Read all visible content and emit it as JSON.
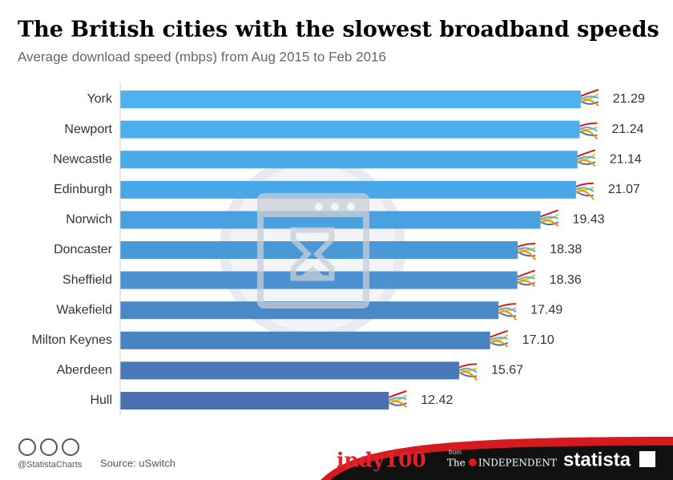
{
  "chart_data": {
    "type": "hbar",
    "title": "The British cities with the slowest broadband speeds",
    "subtitle": "Average download speed (mbps) from Aug 2015 to Feb 2016",
    "categories": [
      "York",
      "Newport",
      "Newcastle",
      "Edinburgh",
      "Norwich",
      "Doncaster",
      "Sheffield",
      "Wakefield",
      "Milton Keynes",
      "Aberdeen",
      "Hull"
    ],
    "values": [
      21.29,
      21.24,
      21.14,
      21.07,
      19.43,
      18.38,
      18.36,
      17.49,
      17.1,
      15.67,
      12.42
    ],
    "value_labels": [
      "21.29",
      "21.24",
      "21.14",
      "21.07",
      "19.43",
      "18.38",
      "18.36",
      "17.49",
      "17.10",
      "15.67",
      "12.42"
    ],
    "colors": [
      "#4db3ef",
      "#4cafec",
      "#4babea",
      "#4aa7e7",
      "#4aa1e0",
      "#4a98d8",
      "#4a92d1",
      "#4a89c8",
      "#4a83c1",
      "#4a79b8",
      "#4a70b0"
    ],
    "xlim": [
      0,
      25
    ],
    "credit": "@StatistaCharts",
    "source": "Source: uSwitch",
    "logos": {
      "indy": "indy100",
      "from": "from",
      "the": "The",
      "independent": "INDEPENDENT",
      "statista": "statista"
    }
  }
}
